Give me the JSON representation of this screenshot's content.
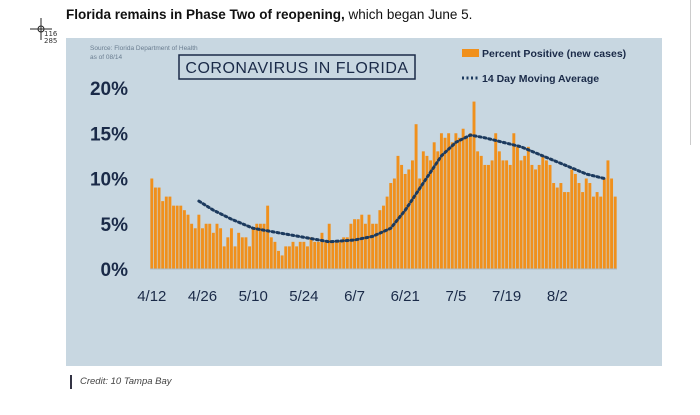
{
  "headline": {
    "bold": "Florida remains in Phase Two of reopening,",
    "rest": " which began June 5."
  },
  "cursor_readout": [
    "116",
    "285"
  ],
  "credit": "Credit: 10 Tampa Bay",
  "colors": {
    "bar": "#f0901c",
    "avg": "#1c3a5e",
    "panel": "#c8d7e1",
    "axis_text": "#1a2a48"
  },
  "chart_data": {
    "type": "bar",
    "title": "CORONAVIRUS IN FLORIDA",
    "source": [
      "Source: Florida Department of Health",
      "as of 08/14"
    ],
    "y_ticks": [
      "0%",
      "5%",
      "10%",
      "15%",
      "20%"
    ],
    "ylim": [
      0,
      20
    ],
    "x_ticks": [
      "4/12",
      "4/26",
      "5/10",
      "5/24",
      "6/7",
      "6/21",
      "7/5",
      "7/19",
      "8/2"
    ],
    "x_start": "4/12",
    "legend": [
      "Percent Positive (new cases)",
      "14 Day Moving Average"
    ],
    "legend_position": "top-right",
    "series": [
      {
        "name": "Percent Positive (new cases)",
        "values": [
          10.0,
          9.0,
          9.0,
          7.5,
          8.0,
          8.0,
          7.0,
          7.0,
          7.0,
          6.5,
          6.0,
          5.0,
          4.5,
          6.0,
          4.5,
          5.0,
          5.0,
          4.0,
          5.0,
          4.5,
          2.5,
          3.5,
          4.5,
          2.5,
          4.0,
          3.5,
          3.5,
          2.5,
          4.5,
          5.0,
          5.0,
          5.0,
          7.0,
          3.5,
          3.0,
          2.0,
          1.5,
          2.5,
          2.5,
          3.0,
          2.5,
          3.0,
          3.0,
          2.5,
          3.5,
          3.0,
          3.0,
          4.0,
          3.0,
          5.0,
          3.0,
          3.0,
          3.0,
          3.5,
          3.5,
          5.0,
          5.5,
          5.5,
          6.0,
          5.0,
          6.0,
          5.0,
          5.0,
          6.5,
          7.0,
          8.0,
          9.5,
          10.0,
          12.5,
          11.5,
          10.5,
          11.0,
          12.0,
          16.0,
          10.0,
          13.0,
          12.5,
          12.0,
          14.0,
          13.0,
          15.0,
          14.5,
          15.0,
          14.0,
          15.0,
          14.5,
          15.5,
          14.5,
          15.0,
          18.5,
          13.0,
          12.5,
          11.5,
          11.5,
          12.0,
          15.0,
          13.0,
          12.0,
          12.0,
          11.5,
          15.0,
          13.5,
          12.0,
          12.5,
          13.5,
          11.5,
          11.0,
          11.5,
          12.5,
          12.0,
          11.5,
          9.5,
          9.0,
          9.5,
          8.5,
          8.5,
          11.0,
          10.5,
          9.5,
          8.5,
          10.0,
          9.5,
          8.0,
          8.5,
          8.0,
          10.0,
          12.0,
          10.0,
          8.0
        ]
      },
      {
        "name": "14 Day Moving Average",
        "points": [
          [
            13,
            7.5
          ],
          [
            17,
            6.5
          ],
          [
            22,
            5.5
          ],
          [
            28,
            4.5
          ],
          [
            35,
            4.0
          ],
          [
            42,
            3.5
          ],
          [
            49,
            3.0
          ],
          [
            56,
            3.2
          ],
          [
            61,
            3.6
          ],
          [
            66,
            4.5
          ],
          [
            70,
            6.5
          ],
          [
            75,
            9.5
          ],
          [
            80,
            12.5
          ],
          [
            84,
            14.0
          ],
          [
            88,
            14.8
          ],
          [
            92,
            14.5
          ],
          [
            97,
            14.0
          ],
          [
            102,
            13.5
          ],
          [
            108,
            12.5
          ],
          [
            114,
            11.5
          ],
          [
            120,
            10.5
          ],
          [
            125,
            10.0
          ]
        ]
      }
    ]
  }
}
